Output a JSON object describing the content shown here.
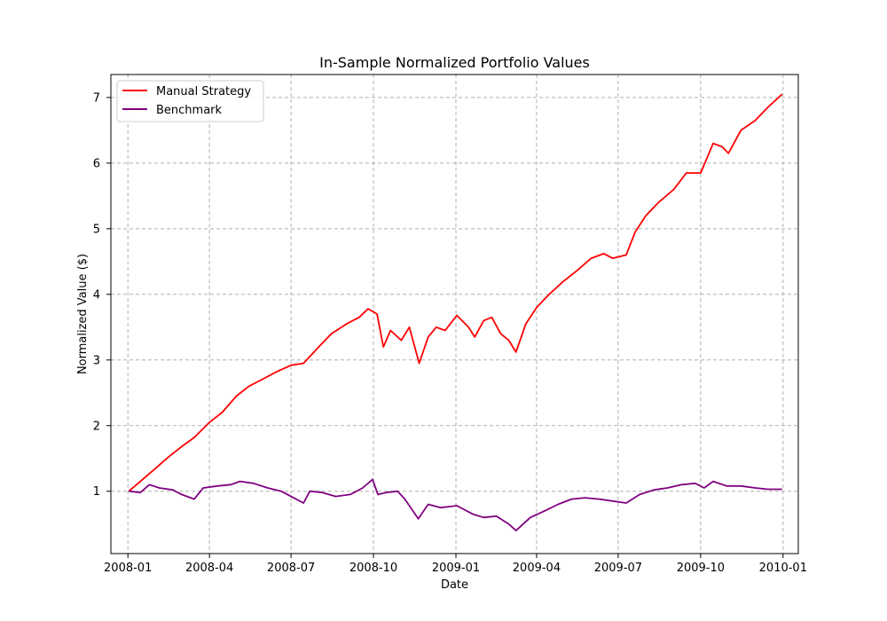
{
  "chart_data": {
    "type": "line",
    "title": "In-Sample Normalized Portfolio Values",
    "xlabel": "Date",
    "ylabel": "Normalized Value ($)",
    "x_ticks": [
      "2008-01",
      "2008-04",
      "2008-07",
      "2008-10",
      "2009-01",
      "2009-04",
      "2009-07",
      "2009-10",
      "2010-01"
    ],
    "y_ticks": [
      "1",
      "2",
      "3",
      "4",
      "5",
      "6",
      "7"
    ],
    "xlim": [
      "2007-12-13",
      "2010-01-18"
    ],
    "ylim": [
      0.05,
      7.35
    ],
    "grid": true,
    "legend_position": "top-left",
    "series": [
      {
        "name": "Manual Strategy",
        "color": "#ff0000",
        "points": [
          [
            "2008-01-02",
            1.0
          ],
          [
            "2008-01-15",
            1.15
          ],
          [
            "2008-02-01",
            1.35
          ],
          [
            "2008-02-15",
            1.52
          ],
          [
            "2008-03-01",
            1.68
          ],
          [
            "2008-03-15",
            1.82
          ],
          [
            "2008-04-01",
            2.05
          ],
          [
            "2008-04-15",
            2.2
          ],
          [
            "2008-05-01",
            2.45
          ],
          [
            "2008-05-15",
            2.6
          ],
          [
            "2008-06-01",
            2.72
          ],
          [
            "2008-06-15",
            2.82
          ],
          [
            "2008-07-01",
            2.92
          ],
          [
            "2008-07-15",
            2.95
          ],
          [
            "2008-08-01",
            3.2
          ],
          [
            "2008-08-15",
            3.4
          ],
          [
            "2008-09-01",
            3.55
          ],
          [
            "2008-09-15",
            3.65
          ],
          [
            "2008-09-25",
            3.78
          ],
          [
            "2008-10-05",
            3.7
          ],
          [
            "2008-10-12",
            3.2
          ],
          [
            "2008-10-20",
            3.45
          ],
          [
            "2008-11-01",
            3.3
          ],
          [
            "2008-11-10",
            3.5
          ],
          [
            "2008-11-21",
            2.95
          ],
          [
            "2008-12-01",
            3.35
          ],
          [
            "2008-12-10",
            3.5
          ],
          [
            "2008-12-20",
            3.45
          ],
          [
            "2009-01-02",
            3.68
          ],
          [
            "2009-01-15",
            3.5
          ],
          [
            "2009-01-22",
            3.35
          ],
          [
            "2009-02-01",
            3.6
          ],
          [
            "2009-02-10",
            3.65
          ],
          [
            "2009-02-20",
            3.4
          ],
          [
            "2009-03-01",
            3.3
          ],
          [
            "2009-03-09",
            3.12
          ],
          [
            "2009-03-20",
            3.55
          ],
          [
            "2009-04-01",
            3.8
          ],
          [
            "2009-04-15",
            4.0
          ],
          [
            "2009-05-01",
            4.2
          ],
          [
            "2009-05-15",
            4.35
          ],
          [
            "2009-06-01",
            4.55
          ],
          [
            "2009-06-15",
            4.62
          ],
          [
            "2009-06-25",
            4.55
          ],
          [
            "2009-07-10",
            4.6
          ],
          [
            "2009-07-20",
            4.95
          ],
          [
            "2009-08-01",
            5.2
          ],
          [
            "2009-08-15",
            5.4
          ],
          [
            "2009-09-01",
            5.6
          ],
          [
            "2009-09-15",
            5.85
          ],
          [
            "2009-10-01",
            5.85
          ],
          [
            "2009-10-15",
            6.3
          ],
          [
            "2009-10-25",
            6.25
          ],
          [
            "2009-11-01",
            6.15
          ],
          [
            "2009-11-15",
            6.5
          ],
          [
            "2009-12-01",
            6.65
          ],
          [
            "2009-12-15",
            6.85
          ],
          [
            "2009-12-31",
            7.05
          ]
        ]
      },
      {
        "name": "Benchmark",
        "color": "#800080",
        "points": [
          [
            "2008-01-02",
            1.0
          ],
          [
            "2008-01-15",
            0.98
          ],
          [
            "2008-01-25",
            1.1
          ],
          [
            "2008-02-05",
            1.05
          ],
          [
            "2008-02-20",
            1.02
          ],
          [
            "2008-03-01",
            0.95
          ],
          [
            "2008-03-15",
            0.88
          ],
          [
            "2008-03-25",
            1.05
          ],
          [
            "2008-04-10",
            1.08
          ],
          [
            "2008-04-25",
            1.1
          ],
          [
            "2008-05-05",
            1.15
          ],
          [
            "2008-05-20",
            1.12
          ],
          [
            "2008-06-05",
            1.05
          ],
          [
            "2008-06-20",
            1.0
          ],
          [
            "2008-07-01",
            0.92
          ],
          [
            "2008-07-15",
            0.82
          ],
          [
            "2008-07-22",
            1.0
          ],
          [
            "2008-08-05",
            0.98
          ],
          [
            "2008-08-20",
            0.92
          ],
          [
            "2008-09-05",
            0.95
          ],
          [
            "2008-09-19",
            1.05
          ],
          [
            "2008-09-30",
            1.18
          ],
          [
            "2008-10-06",
            0.95
          ],
          [
            "2008-10-15",
            0.98
          ],
          [
            "2008-10-28",
            1.0
          ],
          [
            "2008-11-05",
            0.88
          ],
          [
            "2008-11-20",
            0.58
          ],
          [
            "2008-12-01",
            0.8
          ],
          [
            "2008-12-15",
            0.75
          ],
          [
            "2009-01-02",
            0.78
          ],
          [
            "2009-01-20",
            0.65
          ],
          [
            "2009-02-01",
            0.6
          ],
          [
            "2009-02-15",
            0.62
          ],
          [
            "2009-03-01",
            0.5
          ],
          [
            "2009-03-09",
            0.4
          ],
          [
            "2009-03-25",
            0.6
          ],
          [
            "2009-04-10",
            0.7
          ],
          [
            "2009-04-25",
            0.8
          ],
          [
            "2009-05-10",
            0.88
          ],
          [
            "2009-05-25",
            0.9
          ],
          [
            "2009-06-10",
            0.88
          ],
          [
            "2009-06-25",
            0.85
          ],
          [
            "2009-07-10",
            0.82
          ],
          [
            "2009-07-25",
            0.95
          ],
          [
            "2009-08-10",
            1.02
          ],
          [
            "2009-08-25",
            1.05
          ],
          [
            "2009-09-10",
            1.1
          ],
          [
            "2009-09-25",
            1.12
          ],
          [
            "2009-10-05",
            1.05
          ],
          [
            "2009-10-15",
            1.15
          ],
          [
            "2009-10-30",
            1.08
          ],
          [
            "2009-11-15",
            1.08
          ],
          [
            "2009-12-01",
            1.05
          ],
          [
            "2009-12-15",
            1.03
          ],
          [
            "2009-12-31",
            1.03
          ]
        ]
      }
    ]
  }
}
